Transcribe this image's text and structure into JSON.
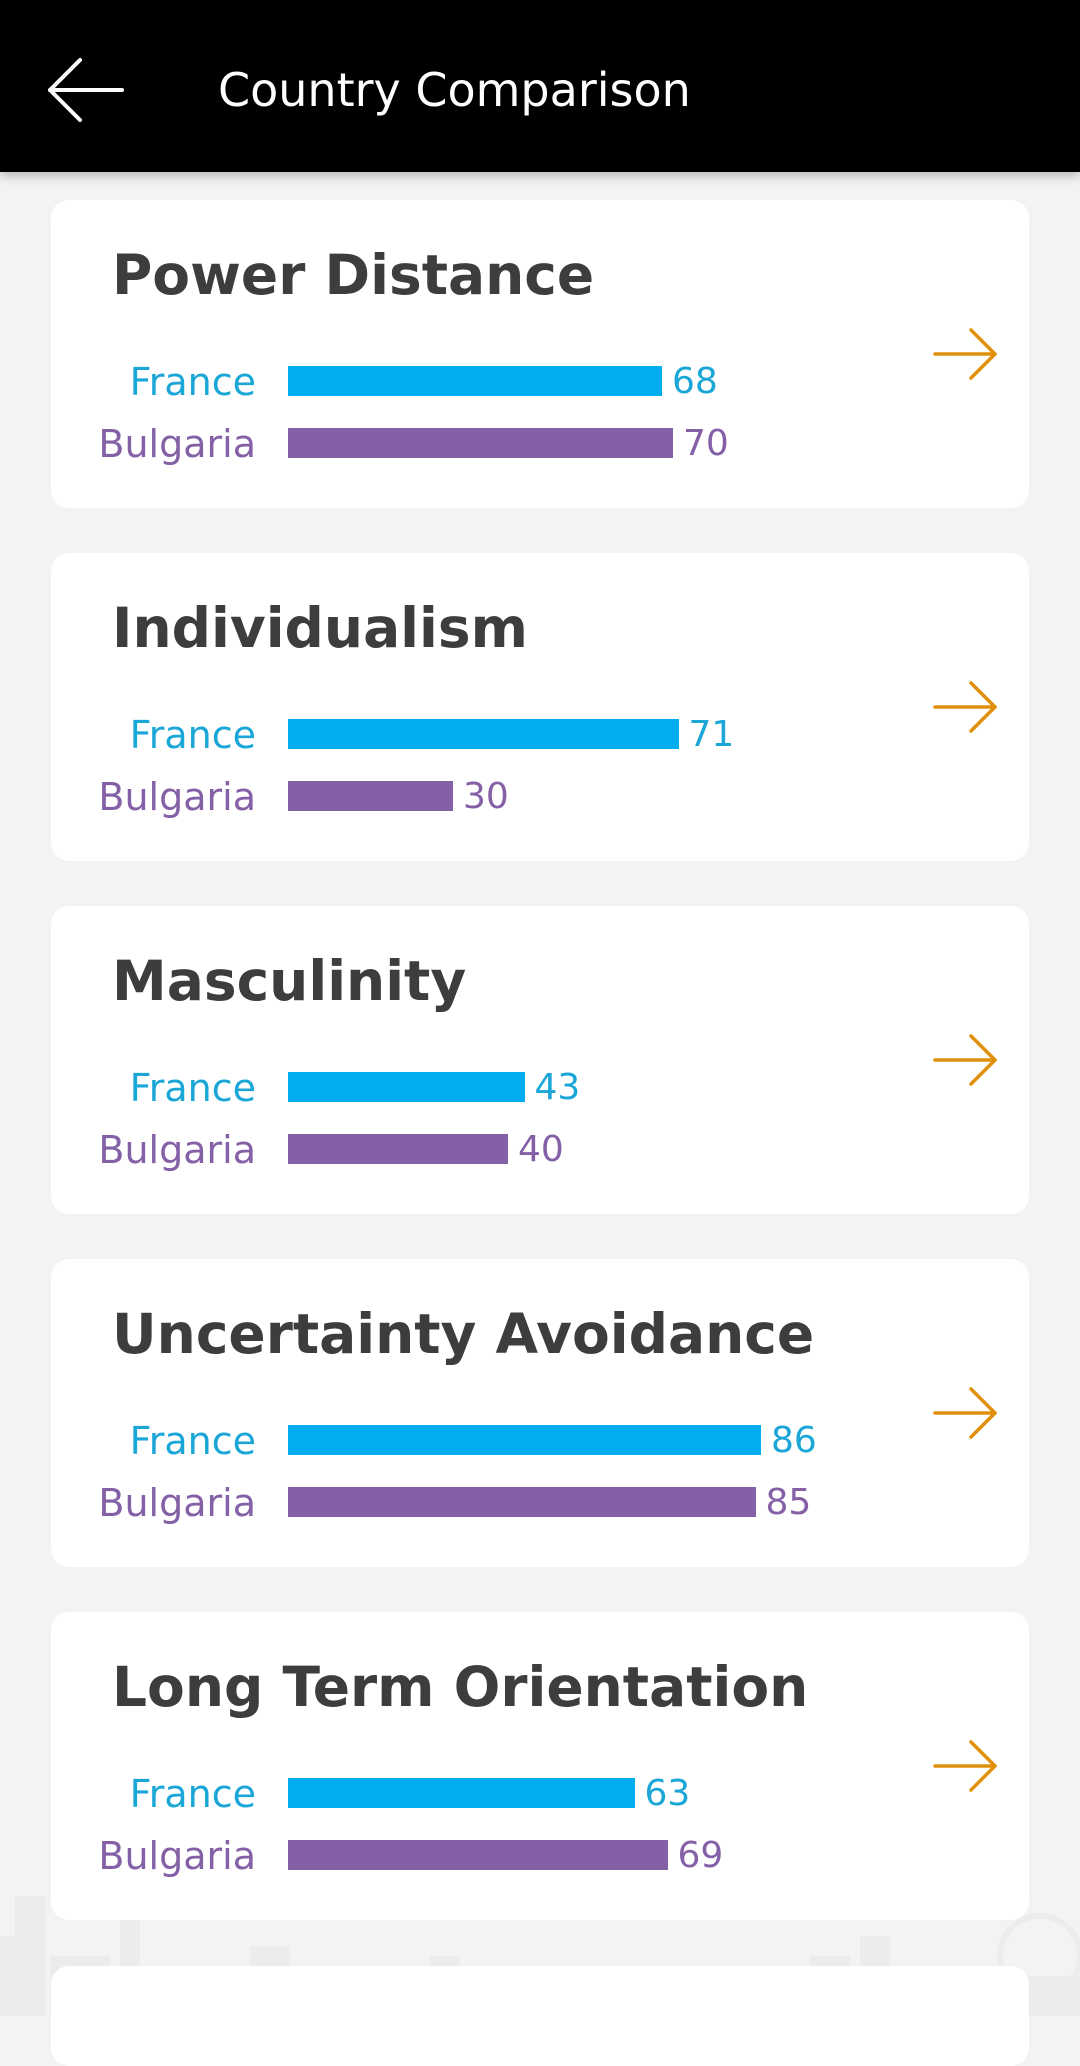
{
  "header": {
    "title": "Country Comparison"
  },
  "countries": {
    "a": {
      "name": "France",
      "color": "#00aeef"
    },
    "b": {
      "name": "Bulgaria",
      "color": "#8460a7"
    }
  },
  "dimensions": [
    {
      "title": "Power Distance",
      "france": 68,
      "bulgaria": 70
    },
    {
      "title": "Individualism",
      "france": 71,
      "bulgaria": 30
    },
    {
      "title": "Masculinity",
      "france": 43,
      "bulgaria": 40
    },
    {
      "title": "Uncertainty Avoidance",
      "france": 86,
      "bulgaria": 85
    },
    {
      "title": "Long Term Orientation",
      "france": 63,
      "bulgaria": 69
    }
  ],
  "colors": {
    "header_bg": "#000000",
    "page_bg": "#f3f3f3",
    "card_bg": "#ffffff",
    "title_text": "#3d3d3d",
    "arrow": "#e0900c"
  },
  "icons": {
    "back": "arrow-left-icon",
    "detail": "arrow-right-icon"
  }
}
